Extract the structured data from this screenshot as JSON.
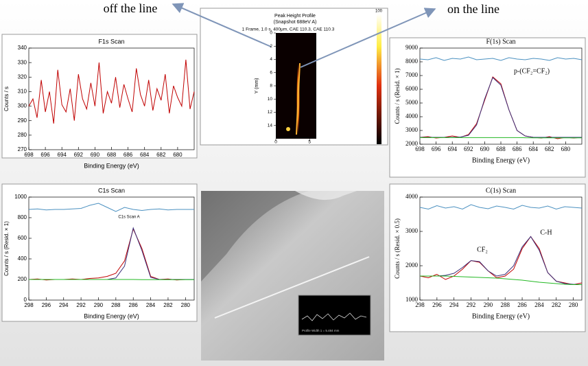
{
  "callouts": [
    "off the line",
    "on the line"
  ],
  "profile_image": {
    "title": "Peak Height Profile",
    "subtitle": "(Snapshot 688eV A)",
    "caption": "1 Frame, 1.0 s, 400μm, CAE 110.3, CAE 110.3",
    "ylabel": "Y (mm)",
    "ylim": [
      0,
      16
    ],
    "yticks": [
      0,
      2,
      4,
      6,
      8,
      10,
      12,
      14
    ],
    "xlim": [
      0,
      6
    ],
    "xticks": [
      0,
      5
    ],
    "colorbar_label": "100"
  },
  "sem_image": {
    "inset_caption": "Profile Width 1 = 5.484 mm"
  },
  "chart_data": [
    {
      "type": "line",
      "title": "F1s Scan",
      "xlabel": "Binding Energy (eV)",
      "ylabel": "Counts / s",
      "xlim": [
        698,
        678
      ],
      "ylim": [
        270,
        340
      ],
      "xticks": [
        698,
        696,
        694,
        692,
        690,
        688,
        686,
        684,
        682,
        680
      ],
      "yticks": [
        270,
        280,
        290,
        300,
        310,
        320,
        330,
        340
      ],
      "x": [
        698,
        697.5,
        697,
        696.5,
        696,
        695.5,
        695,
        694.5,
        694,
        693.5,
        693,
        692.5,
        692,
        691.5,
        691,
        690.5,
        690,
        689.5,
        689,
        688.5,
        688,
        687.5,
        687,
        686.5,
        686,
        685.5,
        685,
        684.5,
        684,
        683.5,
        683,
        682.5,
        682,
        681.5,
        681,
        680.5,
        680,
        679.5,
        679,
        678.5,
        678
      ],
      "series": [
        {
          "color": "#c00000",
          "values": [
            300,
            305,
            292,
            318,
            296,
            310,
            288,
            325,
            301,
            296,
            312,
            290,
            322,
            305,
            298,
            316,
            300,
            330,
            295,
            310,
            302,
            320,
            299,
            315,
            305,
            296,
            326,
            308,
            300,
            318,
            297,
            312,
            304,
            322,
            295,
            314,
            306,
            300,
            332,
            298,
            310
          ]
        }
      ],
      "annotations": []
    },
    {
      "type": "line",
      "title": "F(1s) Scan",
      "xlabel": "Binding Energy (eV)",
      "ylabel": "Counts / s  (Resid. × 1)",
      "xlim": [
        698,
        678
      ],
      "ylim": [
        2000,
        9000
      ],
      "xticks": [
        698,
        696,
        694,
        692,
        690,
        688,
        686,
        684,
        682,
        680
      ],
      "yticks": [
        2000,
        3000,
        4000,
        5000,
        6000,
        7000,
        8000,
        9000
      ],
      "x": [
        698,
        697,
        696,
        695,
        694,
        693,
        692,
        691,
        690,
        689,
        688,
        687,
        686,
        685,
        684,
        683,
        682,
        681,
        680,
        679,
        678
      ],
      "series": [
        {
          "color": "#4a90c0",
          "values": [
            8200,
            8150,
            8300,
            8100,
            8250,
            8200,
            8350,
            8150,
            8200,
            8250,
            8100,
            8300,
            8200,
            8150,
            8250,
            8200,
            8100,
            8300,
            8200,
            8250,
            8150
          ]
        },
        {
          "color": "#c00000",
          "values": [
            2500,
            2550,
            2450,
            2500,
            2600,
            2500,
            2700,
            3500,
            5200,
            6900,
            6400,
            4500,
            3000,
            2600,
            2500,
            2450,
            2550,
            2400,
            2500,
            2450,
            2500
          ]
        },
        {
          "color": "#3a2f7a",
          "values": [
            2500,
            2500,
            2500,
            2500,
            2500,
            2520,
            2650,
            3400,
            5300,
            6850,
            6300,
            4500,
            3000,
            2600,
            2500,
            2500,
            2500,
            2500,
            2500,
            2500,
            2500
          ]
        },
        {
          "color": "#22b822",
          "values": [
            2480,
            2480,
            2480,
            2480,
            2480,
            2480,
            2480,
            2480,
            2480,
            2480,
            2480,
            2480,
            2480,
            2470,
            2460,
            2460,
            2460,
            2460,
            2460,
            2460,
            2460
          ]
        }
      ],
      "annotations": [
        "p-(CF₂=CF₂)"
      ]
    },
    {
      "type": "line",
      "title": "C1s Scan",
      "xlabel": "Binding Energy (eV)",
      "ylabel": "Counts / s  (Resid. × 1)",
      "xlim": [
        298,
        279
      ],
      "ylim": [
        0,
        1000
      ],
      "xticks": [
        298,
        296,
        294,
        292,
        290,
        288,
        286,
        284,
        282,
        280
      ],
      "yticks": [
        0,
        200,
        400,
        600,
        800,
        1000
      ],
      "x": [
        298,
        297,
        296,
        295,
        294,
        293,
        292,
        291,
        290,
        289,
        288,
        287,
        286,
        285,
        284,
        283,
        282,
        281,
        280,
        279
      ],
      "series": [
        {
          "color": "#4a90c0",
          "values": [
            880,
            885,
            875,
            880,
            880,
            885,
            890,
            920,
            940,
            900,
            860,
            900,
            880,
            870,
            880,
            885,
            875,
            880,
            880,
            880
          ]
        },
        {
          "color": "#c00000",
          "values": [
            200,
            205,
            195,
            200,
            200,
            205,
            200,
            210,
            215,
            230,
            260,
            380,
            690,
            500,
            230,
            200,
            205,
            195,
            200,
            200
          ]
        },
        {
          "color": "#3a2f7a",
          "values": [
            200,
            200,
            200,
            200,
            200,
            200,
            200,
            200,
            200,
            200,
            215,
            330,
            700,
            480,
            220,
            200,
            200,
            200,
            200,
            200
          ]
        },
        {
          "color": "#22b822",
          "values": [
            200,
            200,
            200,
            200,
            200,
            200,
            200,
            200,
            200,
            200,
            200,
            200,
            200,
            198,
            198,
            198,
            198,
            198,
            198,
            198
          ]
        }
      ],
      "annotations": [
        "C1s Scan A"
      ]
    },
    {
      "type": "line",
      "title": "C(1s) Scan",
      "xlabel": "Binding Energy (eV)",
      "ylabel": "Counts / s  (Resid. × 0.5)",
      "xlim": [
        298,
        279
      ],
      "ylim": [
        1000,
        4000
      ],
      "xticks": [
        298,
        296,
        294,
        292,
        290,
        288,
        286,
        284,
        282,
        280
      ],
      "yticks": [
        1000,
        2000,
        3000,
        4000
      ],
      "x": [
        298,
        297,
        296,
        295,
        294,
        293,
        292,
        291,
        290,
        289,
        288,
        287,
        286,
        285,
        284,
        283,
        282,
        281,
        280,
        279
      ],
      "series": [
        {
          "color": "#4a90c0",
          "values": [
            3700,
            3650,
            3750,
            3680,
            3720,
            3650,
            3780,
            3700,
            3660,
            3740,
            3700,
            3650,
            3760,
            3700,
            3680,
            3740,
            3650,
            3720,
            3700,
            3680
          ]
        },
        {
          "color": "#c00000",
          "values": [
            1700,
            1650,
            1750,
            1600,
            1700,
            1900,
            2150,
            2100,
            1850,
            1650,
            1700,
            1900,
            2500,
            2850,
            2500,
            1800,
            1550,
            1500,
            1450,
            1500
          ]
        },
        {
          "color": "#3a2f7a",
          "values": [
            1700,
            1700,
            1700,
            1720,
            1780,
            1950,
            2150,
            2120,
            1850,
            1700,
            1750,
            2000,
            2550,
            2850,
            2450,
            1800,
            1550,
            1480,
            1460,
            1450
          ]
        },
        {
          "color": "#22b822",
          "values": [
            1700,
            1700,
            1700,
            1700,
            1690,
            1680,
            1670,
            1660,
            1650,
            1640,
            1620,
            1600,
            1580,
            1550,
            1520,
            1500,
            1480,
            1460,
            1450,
            1450
          ]
        }
      ],
      "annotations": [
        "CF₂",
        "C-H"
      ]
    }
  ]
}
